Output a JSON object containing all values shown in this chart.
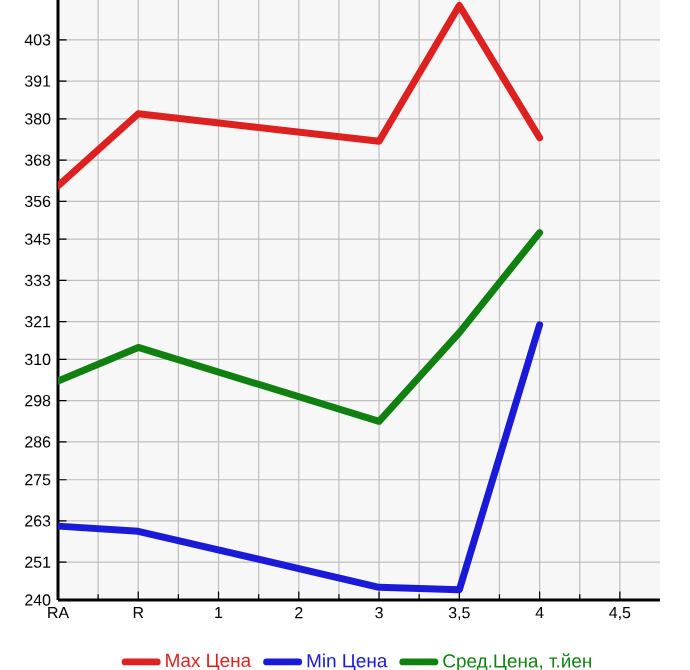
{
  "chart_data": {
    "type": "line",
    "categories": [
      "RA",
      "R",
      "1",
      "2",
      "3",
      "3,5",
      "4",
      "4,5"
    ],
    "series": [
      {
        "name": "Max Цена",
        "color": "#dd2020",
        "values": [
          360.5,
          381.5,
          null,
          null,
          373.5,
          413,
          374.5,
          null
        ]
      },
      {
        "name": "Min Цена",
        "color": "#1a1ad8",
        "values": [
          261.5,
          260,
          null,
          null,
          243.7,
          243,
          320.1,
          null
        ]
      },
      {
        "name": "Сред.Цена, т.йен",
        "color": "#108010",
        "values": [
          303.7,
          313.5,
          null,
          null,
          292,
          317.8,
          346.9,
          null
        ]
      }
    ],
    "ylim": [
      240,
      414.6
    ],
    "yticks": [
      240,
      251,
      263,
      275,
      286,
      298,
      310,
      321,
      333,
      345,
      356,
      368,
      380,
      391,
      403
    ],
    "grid": true,
    "legend": "bottom",
    "marker": "none",
    "line_style": "solid"
  }
}
